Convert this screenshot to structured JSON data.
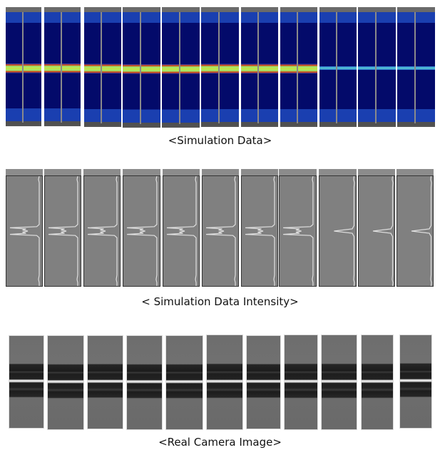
{
  "figure": {
    "rows": [
      {
        "caption": "<Simulation Data>",
        "panel_count": 11,
        "colors": {
          "background": "#030a6a",
          "band_edge": "#d23a10",
          "band_core": "#9eee70"
        }
      },
      {
        "caption": "< Simulation Data Intensity>",
        "panel_count": 11,
        "colors": {
          "background": "#808080",
          "trace": "#e0e0e0"
        }
      },
      {
        "caption": "<Real Camera Image>",
        "panel_count": 11,
        "colors": {
          "stripe": "#1e1e1e",
          "centerline": "#f0f0f0"
        }
      }
    ]
  }
}
